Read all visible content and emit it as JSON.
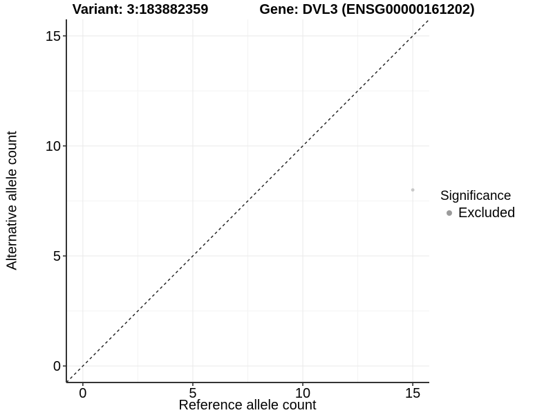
{
  "chart_data": {
    "type": "scatter",
    "titles": {
      "variant": "Variant: 3:183882359",
      "gene": "Gene: DVL3 (ENSG00000161202)"
    },
    "xlabel": "Reference allele count",
    "ylabel": "Alternative allele count",
    "xlim": [
      -0.75,
      15.75
    ],
    "ylim": [
      -0.75,
      15.75
    ],
    "x_ticks": [
      0,
      5,
      10,
      15
    ],
    "y_ticks": [
      0,
      5,
      10,
      15
    ],
    "x_minor_ticks": [
      2.5,
      7.5,
      12.5
    ],
    "y_minor_ticks": [
      2.5,
      7.5,
      12.5
    ],
    "grid": "on",
    "legend_position": "right",
    "identity_line": {
      "slope": 1,
      "intercept": 0,
      "style": "dashed",
      "color": "#1a1a1a"
    },
    "series": [
      {
        "name": "Excluded",
        "color": "#c8c8c8",
        "points": [
          {
            "x": 15,
            "y": 8
          }
        ]
      }
    ],
    "legend": {
      "title": "Significance",
      "entries": [
        {
          "label": "Excluded",
          "color": "#9b9b9b"
        }
      ]
    },
    "colors": {
      "axis_line": "#333333",
      "tick_mark": "#333333",
      "tick_text": "#000000",
      "grid_major": "#e9e9e9",
      "grid_minor": "#f3f3f3",
      "background": "#ffffff"
    }
  }
}
